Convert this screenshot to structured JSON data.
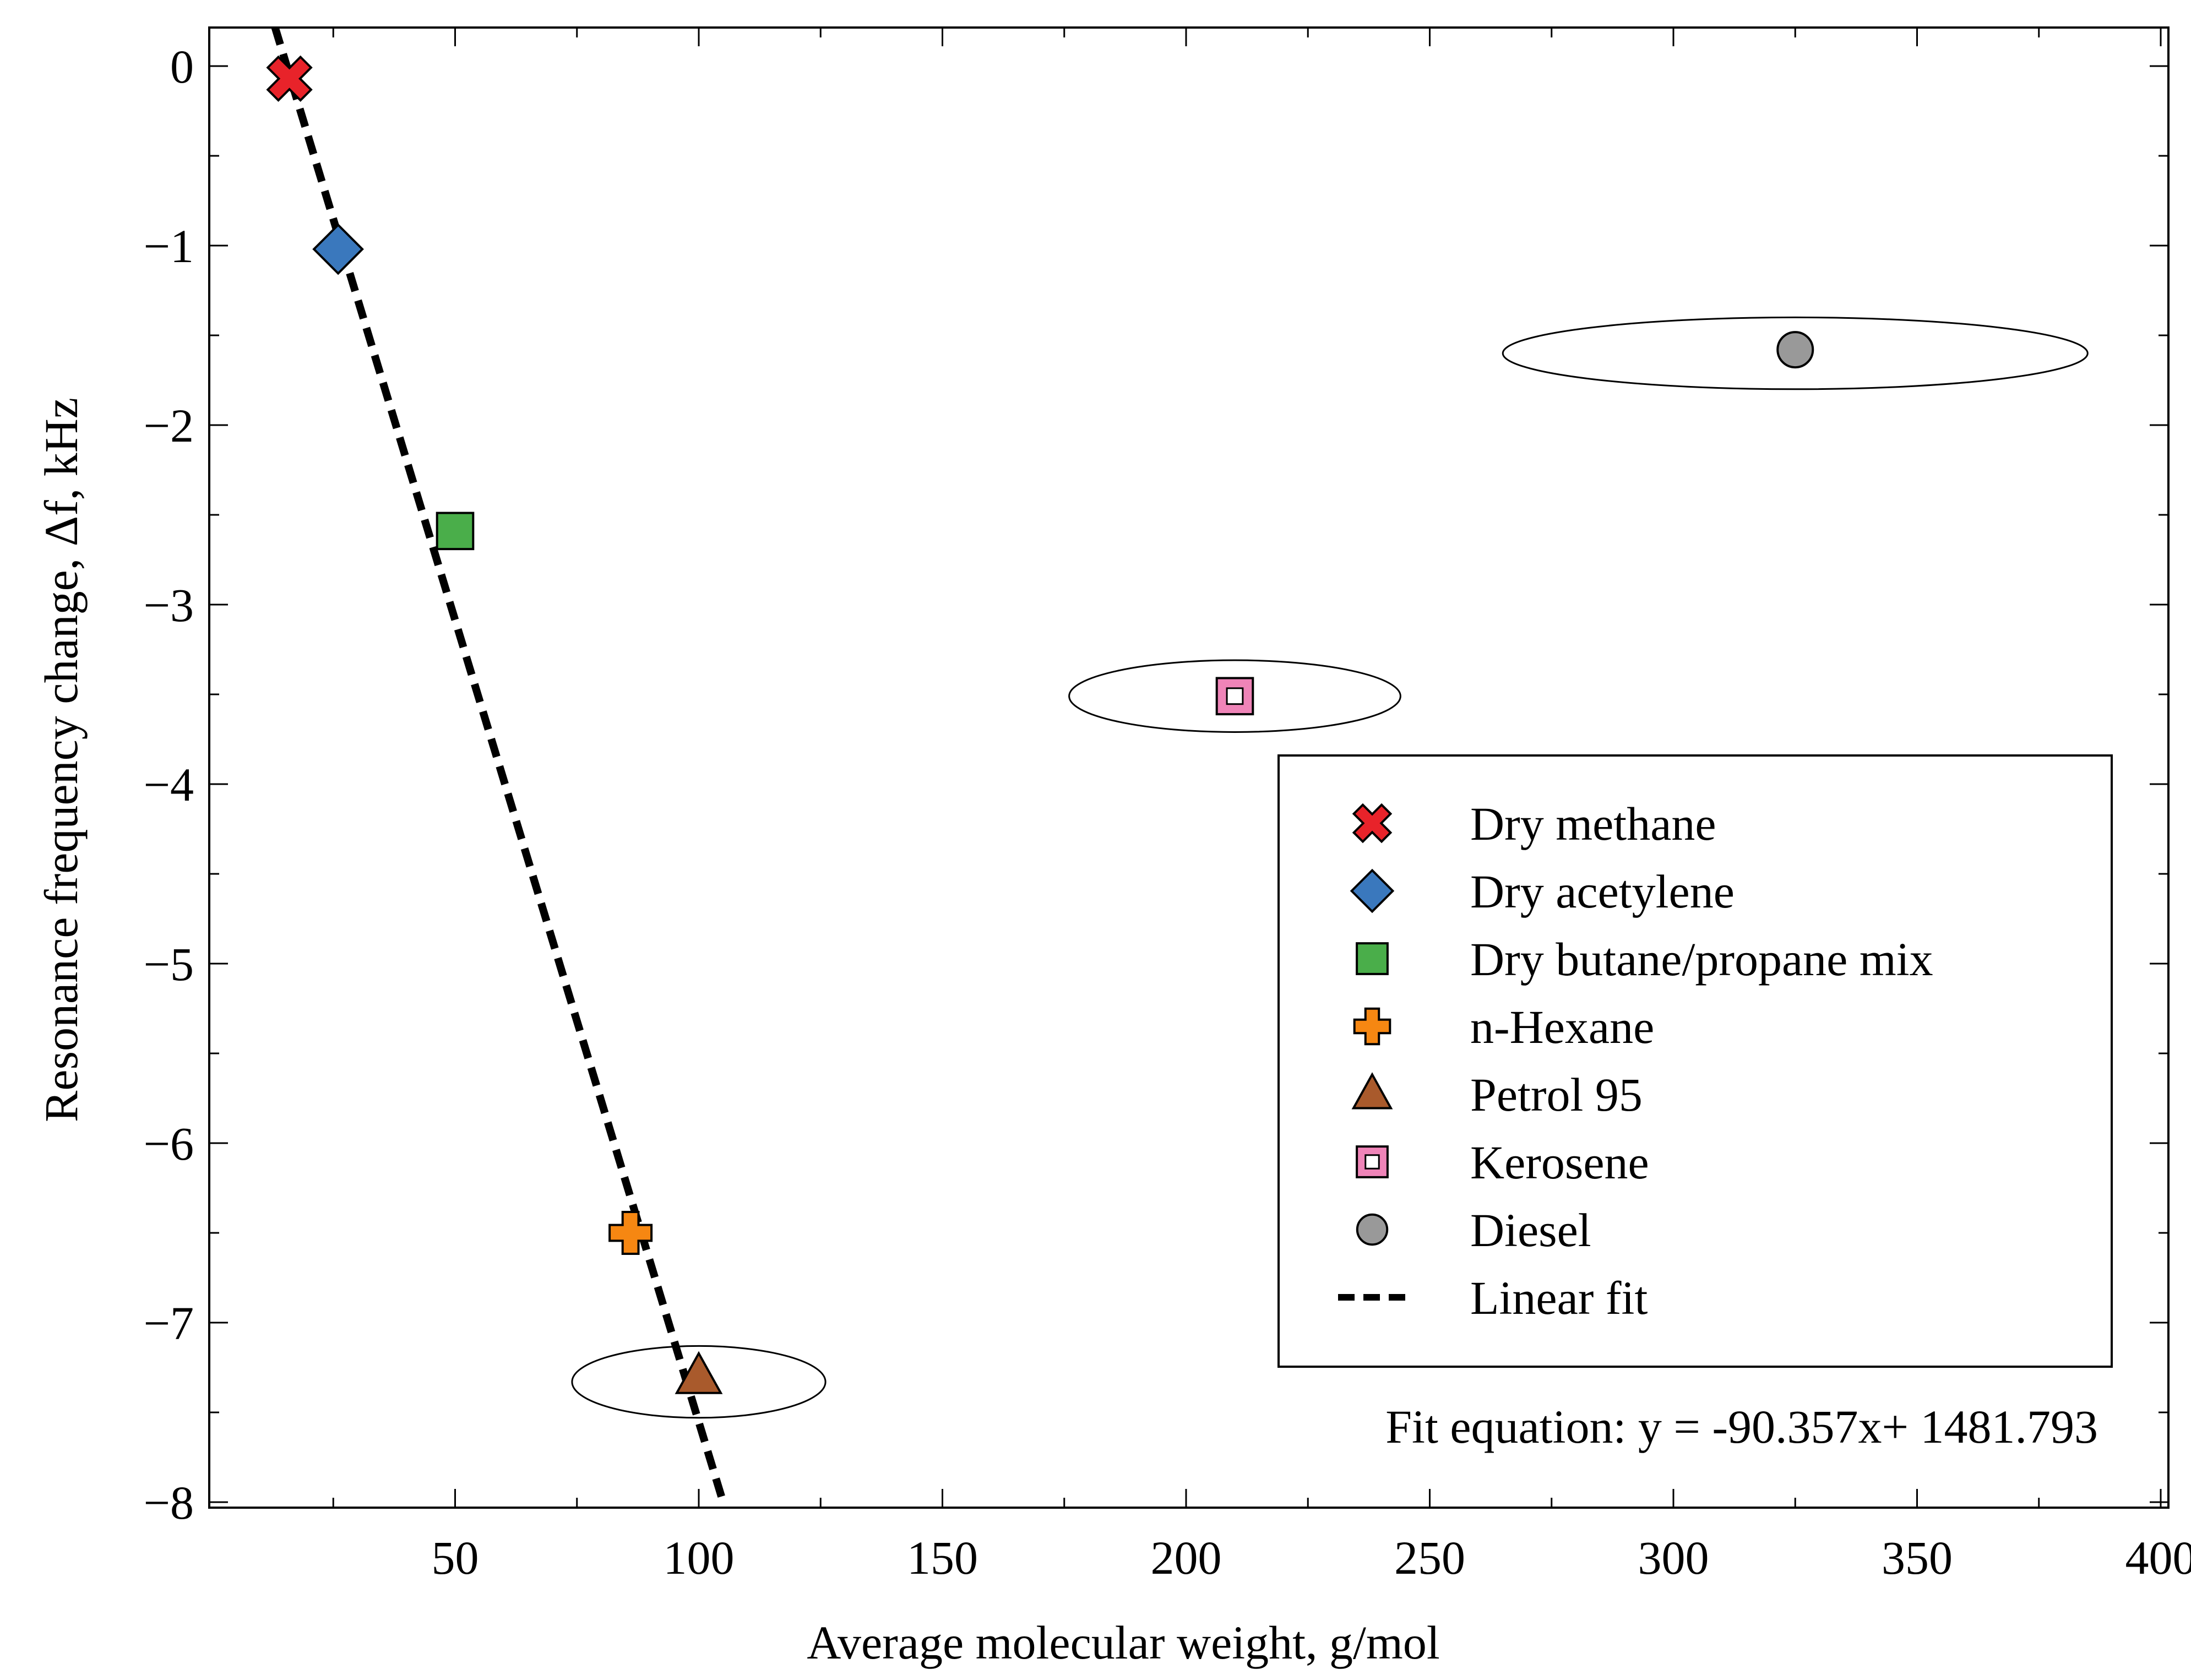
{
  "chart_data": {
    "type": "scatter",
    "title": "",
    "xlabel": "Average molecular weight, g/mol",
    "ylabel": "Resonance frequency change, Δf, kHz",
    "xlim": [
      0,
      405
    ],
    "ylim": [
      -8,
      0.22
    ],
    "x_ticks": [
      50,
      100,
      150,
      200,
      250,
      300,
      350,
      400
    ],
    "x_tick_labels": [
      "50",
      "100",
      "150",
      "200",
      "250",
      "300",
      "350",
      "400"
    ],
    "y_ticks": [
      0,
      -1,
      -2,
      -3,
      -4,
      -5,
      -6,
      -7,
      -8
    ],
    "y_tick_labels": [
      "0",
      "−1",
      "−2",
      "−3",
      "−4",
      "−5",
      "−6",
      "−7",
      "−8"
    ],
    "grid": false,
    "legend_position": "center-right",
    "series": [
      {
        "name": "Dry methane",
        "marker": "x-cross",
        "color": "#e8232a",
        "x": [
          16
        ],
        "y": [
          -0.07
        ]
      },
      {
        "name": "Dry acetylene",
        "marker": "diamond",
        "color": "#3a78bd",
        "x": [
          26
        ],
        "y": [
          -1.02
        ]
      },
      {
        "name": "Dry butane/propane mix",
        "marker": "square",
        "color": "#4aae4a",
        "x": [
          50
        ],
        "y": [
          -2.59
        ]
      },
      {
        "name": "n-Hexane",
        "marker": "plus",
        "color": "#f68712",
        "x": [
          86
        ],
        "y": [
          -6.5
        ]
      },
      {
        "name": "Petrol 95",
        "marker": "triangle",
        "color": "#a95a2c",
        "x": [
          100
        ],
        "y": [
          -7.3
        ]
      },
      {
        "name": "Kerosene",
        "marker": "square-hollow",
        "color": "#ef84b8",
        "x": [
          210
        ],
        "y": [
          -3.51
        ]
      },
      {
        "name": "Diesel",
        "marker": "circle",
        "color": "#999999",
        "x": [
          325
        ],
        "y": [
          -1.58
        ]
      }
    ],
    "fit_line": {
      "name": "Linear fit",
      "style": "dashed",
      "color": "#000000",
      "x": [
        13,
        105
      ],
      "y": [
        0.22,
        -8.0
      ]
    },
    "ellipses": [
      {
        "around": "Petrol 95",
        "cx": 100,
        "cy": -7.33,
        "rx": 26,
        "ry": 0.2
      },
      {
        "around": "Kerosene",
        "cx": 210,
        "cy": -3.51,
        "rx": 34,
        "ry": 0.2
      },
      {
        "around": "Diesel",
        "cx": 325,
        "cy": -1.6,
        "rx": 60,
        "ry": 0.2
      }
    ],
    "annotation": "Fit equation: y = -90.357x+ 1481.793"
  }
}
